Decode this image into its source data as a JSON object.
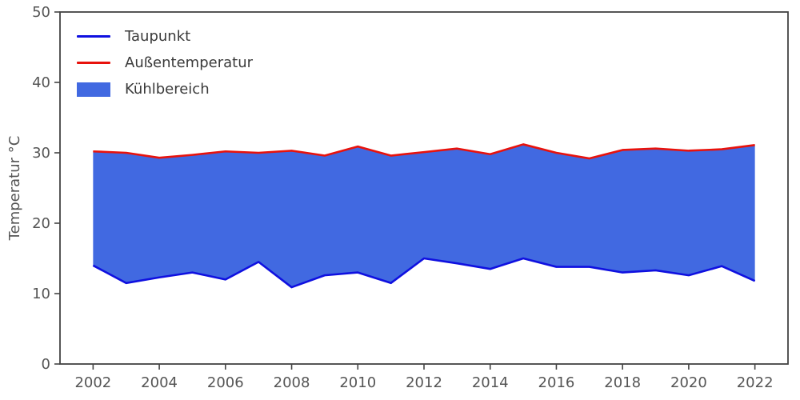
{
  "chart_data": {
    "type": "area",
    "title": "",
    "xlabel": "",
    "ylabel": "Temperatur °C",
    "x": [
      2002,
      2003,
      2004,
      2005,
      2006,
      2007,
      2008,
      2009,
      2010,
      2011,
      2012,
      2013,
      2014,
      2015,
      2016,
      2017,
      2018,
      2019,
      2020,
      2021,
      2022
    ],
    "series": [
      {
        "name": "Taupunkt",
        "color": "#0f10e0",
        "values": [
          14.0,
          11.5,
          12.3,
          13.0,
          12.0,
          14.5,
          10.9,
          12.6,
          13.0,
          11.5,
          15.0,
          14.3,
          13.5,
          15.0,
          13.8,
          13.8,
          13.0,
          13.3,
          12.6,
          13.9,
          11.8
        ]
      },
      {
        "name": "Außentemperatur",
        "color": "#e8120c",
        "values": [
          30.2,
          30.0,
          29.3,
          29.7,
          30.2,
          30.0,
          30.3,
          29.6,
          30.9,
          29.6,
          30.1,
          30.6,
          29.8,
          31.2,
          30.0,
          29.2,
          30.4,
          30.6,
          30.3,
          30.5,
          31.1
        ]
      }
    ],
    "fill_between": {
      "name": "Kühlbereich",
      "color": "#4169e1",
      "between": [
        "Taupunkt",
        "Außentemperatur"
      ]
    },
    "xlim": [
      2001,
      2023
    ],
    "ylim": [
      0,
      50
    ],
    "xticks": [
      2002,
      2004,
      2006,
      2008,
      2010,
      2012,
      2014,
      2016,
      2018,
      2020,
      2022
    ],
    "yticks": [
      0,
      10,
      20,
      30,
      40,
      50
    ],
    "grid": false,
    "legend_position": "upper left"
  },
  "styles": {
    "background": "#ffffff",
    "spine_color": "#444444",
    "tick_label_color": "#555555"
  }
}
